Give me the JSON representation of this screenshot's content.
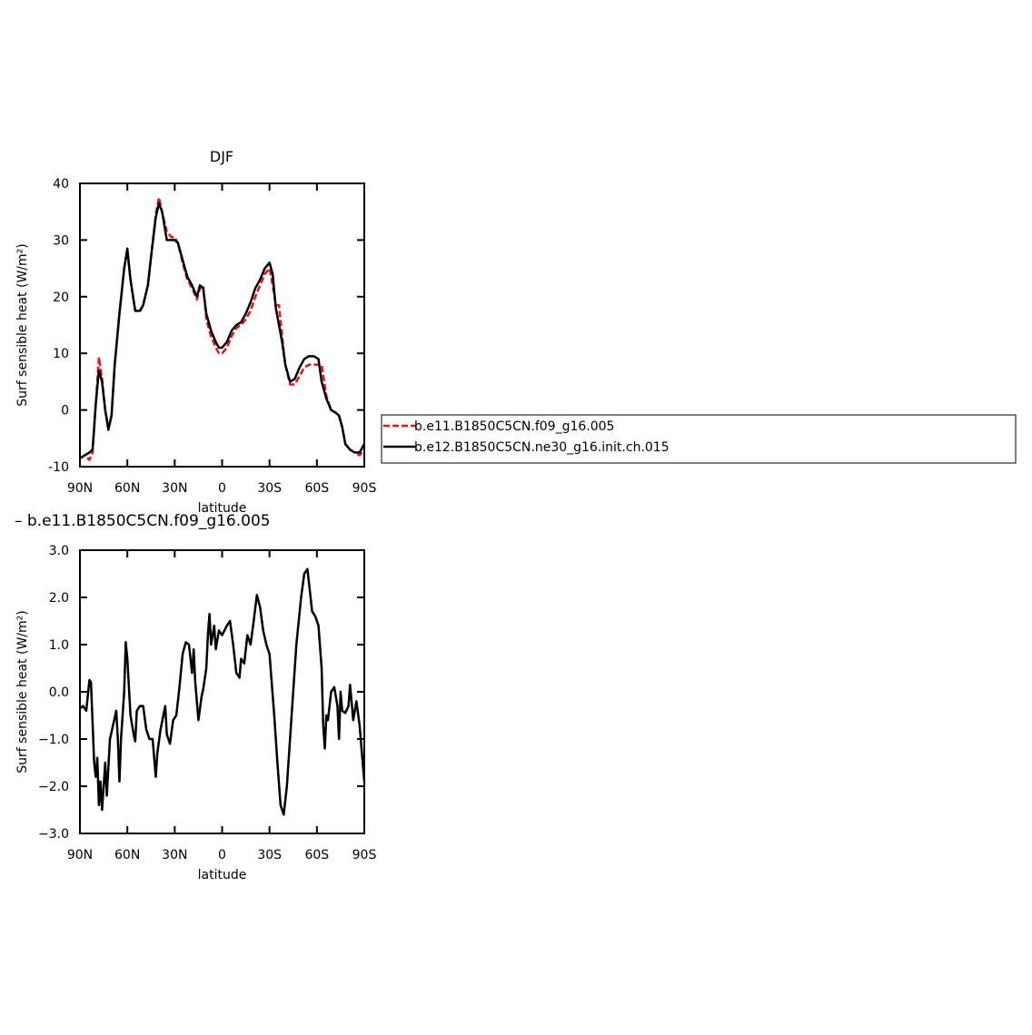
{
  "chart_data": [
    {
      "type": "line",
      "title": "DJF",
      "xlabel": "latitude",
      "ylabel": "Surf sensible heat (W/m²)",
      "xlim": [
        90,
        -90
      ],
      "xticks": [
        {
          "value": 90,
          "label": "90N"
        },
        {
          "value": 60,
          "label": "60N"
        },
        {
          "value": 30,
          "label": "30N"
        },
        0,
        {
          "value": -30,
          "label": "30S"
        },
        {
          "value": -60,
          "label": "60S"
        },
        {
          "value": -90,
          "label": "90S"
        }
      ],
      "ylim": [
        -10,
        40
      ],
      "yticks": [
        -10,
        0,
        10,
        20,
        30,
        40
      ],
      "legend": "right",
      "x": [
        90,
        87,
        84,
        82,
        80,
        78,
        76,
        74,
        72,
        70,
        68,
        65,
        62,
        60,
        58,
        55,
        52,
        50,
        47,
        45,
        42,
        40,
        38,
        35,
        32,
        30,
        28,
        25,
        22,
        19,
        16,
        14,
        12,
        10,
        7,
        4,
        2,
        0,
        -3,
        -6,
        -9,
        -12,
        -15,
        -18,
        -21,
        -24,
        -27,
        -30,
        -32,
        -34,
        -36,
        -38,
        -40,
        -43,
        -46,
        -49,
        -52,
        -55,
        -58,
        -61,
        -63,
        -66,
        -69,
        -72,
        -74,
        -76,
        -78,
        -81,
        -84,
        -87,
        -90
      ],
      "series": [
        {
          "name": "b.e11.B1850C5CN.f09_g16.005",
          "color": "#e8141a",
          "dash": true,
          "values": [
            -8.5,
            -8,
            -8.8,
            -7.5,
            1,
            9.3,
            5.5,
            0,
            -3,
            -1,
            8,
            17,
            25,
            28,
            23,
            17.5,
            17.5,
            18.5,
            22,
            27,
            34.5,
            37.5,
            35,
            31.5,
            30.5,
            30.5,
            29.5,
            26,
            23,
            21.5,
            19.5,
            21.5,
            22,
            16,
            13,
            11,
            10,
            10,
            11,
            13,
            14.5,
            15,
            16,
            17.5,
            20,
            22,
            24,
            25,
            22,
            18.5,
            18.5,
            13,
            8,
            4.5,
            4.5,
            6,
            7.5,
            8,
            8,
            8,
            8,
            2.5,
            0,
            -0.5,
            -1,
            -3,
            -6,
            -7,
            -7.5,
            -8,
            -7
          ]
        },
        {
          "name": "b.e12.B1850C5CN.ne30_g16.init.ch.015",
          "color": "#000000",
          "dash": false,
          "values": [
            -8.5,
            -8,
            -7.5,
            -7,
            1,
            7,
            5,
            0,
            -3.5,
            -1,
            8,
            17,
            25,
            28.5,
            23,
            17.5,
            17.5,
            18.5,
            22,
            27,
            34,
            36.5,
            35,
            30,
            30,
            30,
            29.5,
            26.5,
            23.5,
            22,
            20,
            22,
            21.5,
            17,
            14,
            12,
            11,
            11,
            12,
            14,
            15,
            15.5,
            17,
            19,
            21.5,
            23,
            25,
            26,
            24,
            18,
            15,
            12,
            8,
            5,
            5.5,
            7.5,
            9,
            9.5,
            9.5,
            9,
            5,
            2,
            0,
            -0.5,
            -1,
            -3,
            -6,
            -7,
            -7.5,
            -7.5,
            -6
          ]
        }
      ]
    },
    {
      "type": "line",
      "title": "–  b.e11.B1850C5CN.f09_g16.005",
      "xlabel": "latitude",
      "ylabel": "Surf sensible heat (W/m²)",
      "xlim": [
        90,
        -90
      ],
      "xticks": [
        {
          "value": 90,
          "label": "90N"
        },
        {
          "value": 60,
          "label": "60N"
        },
        {
          "value": 30,
          "label": "30N"
        },
        0,
        {
          "value": -30,
          "label": "30S"
        },
        {
          "value": -60,
          "label": "60S"
        },
        {
          "value": -90,
          "label": "90S"
        }
      ],
      "ylim": [
        -3,
        3
      ],
      "yticks": [
        {
          "value": -3,
          "label": "−3.0"
        },
        {
          "value": -2,
          "label": "−2.0"
        },
        {
          "value": -1,
          "label": "−1.0"
        },
        {
          "value": 0,
          "label": "0.0"
        },
        {
          "value": 1,
          "label": "1.0"
        },
        {
          "value": 2,
          "label": "2.0"
        },
        {
          "value": 3,
          "label": "3.0"
        }
      ],
      "x": [
        90,
        88,
        86,
        84,
        83,
        81,
        80,
        79,
        78,
        77,
        76,
        75,
        74,
        73,
        71,
        69,
        67,
        66,
        65,
        64,
        62,
        61,
        60,
        58,
        56,
        55,
        54,
        52,
        50,
        48,
        46,
        44,
        42,
        41,
        39,
        36,
        35,
        33,
        31,
        29,
        27,
        25,
        23,
        21,
        19,
        18,
        17,
        15,
        13,
        12,
        10,
        9,
        8,
        7,
        5,
        4,
        2,
        0,
        -3,
        -5,
        -7,
        -9,
        -11,
        -12,
        -14,
        -16,
        -18,
        -20,
        -22,
        -24,
        -26,
        -28,
        -30,
        -33,
        -35,
        -37,
        -39,
        -41,
        -44,
        -47,
        -50,
        -52,
        -54,
        -55,
        -57,
        -59,
        -61,
        -63,
        -64,
        -65,
        -66,
        -67,
        -69,
        -71,
        -73,
        -74,
        -75,
        -76,
        -78,
        -80,
        -81,
        -83,
        -85,
        -87,
        -90
      ],
      "series": [
        {
          "color": "#000000",
          "dash": false,
          "values": [
            -0.35,
            -0.3,
            -0.4,
            0.25,
            0.2,
            -1.5,
            -1.8,
            -1.4,
            -2.4,
            -1.9,
            -2.5,
            -2.0,
            -1.5,
            -2.2,
            -1.0,
            -0.7,
            -0.4,
            -1.0,
            -1.9,
            -1.0,
            0.0,
            1.05,
            0.7,
            -0.5,
            -0.9,
            -1.05,
            -0.4,
            -0.3,
            -0.3,
            -0.8,
            -1.0,
            -1.0,
            -1.8,
            -1.3,
            -0.8,
            -0.3,
            -0.9,
            -1.1,
            -0.6,
            -0.5,
            0.1,
            0.8,
            1.05,
            1.0,
            0.4,
            0.9,
            0.2,
            -0.6,
            -0.1,
            0.05,
            0.5,
            1.2,
            1.65,
            1.0,
            1.4,
            0.9,
            1.3,
            1.2,
            1.4,
            1.5,
            1.0,
            0.4,
            0.3,
            0.7,
            0.6,
            1.2,
            1.0,
            1.5,
            2.05,
            1.8,
            1.3,
            1.0,
            0.8,
            -0.5,
            -1.5,
            -2.4,
            -2.6,
            -2.0,
            -0.5,
            1.0,
            2.0,
            2.5,
            2.6,
            2.3,
            1.7,
            1.6,
            1.4,
            0.5,
            -0.7,
            -1.2,
            -0.5,
            -0.6,
            0.0,
            0.1,
            -0.3,
            -1.0,
            0.0,
            -0.4,
            -0.45,
            -0.3,
            0.15,
            -0.6,
            -0.2,
            -0.7,
            -1.9
          ]
        }
      ]
    }
  ]
}
